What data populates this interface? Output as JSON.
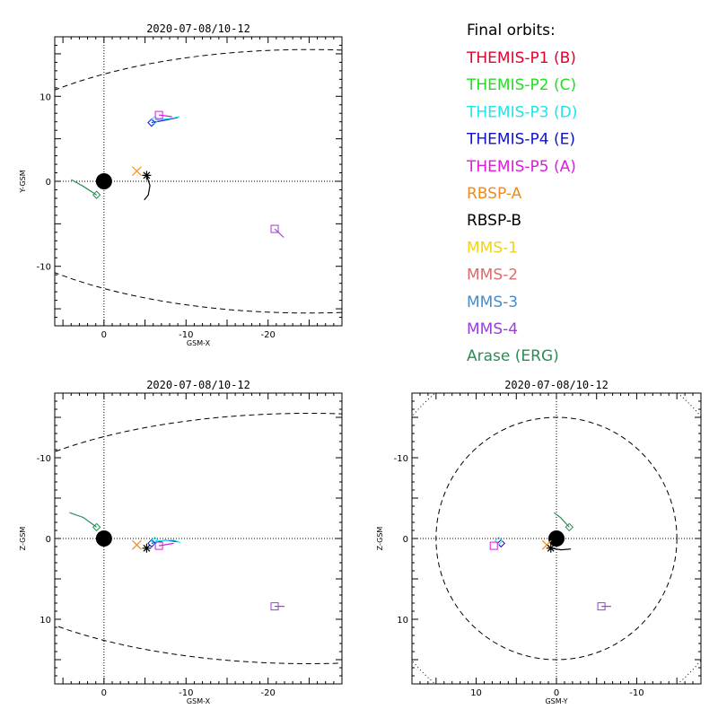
{
  "legend": {
    "title": "Final orbits:",
    "entries": [
      {
        "label": "THEMIS-P1 (B)",
        "color": "#e8002a"
      },
      {
        "label": "THEMIS-P2 (C)",
        "color": "#1fe01f"
      },
      {
        "label": "THEMIS-P3 (D)",
        "color": "#1ee6e6"
      },
      {
        "label": "THEMIS-P4 (E)",
        "color": "#1111cc"
      },
      {
        "label": "THEMIS-P5 (A)",
        "color": "#e01ae0"
      },
      {
        "label": "RBSP-A",
        "color": "#f08a1e"
      },
      {
        "label": "RBSP-B",
        "color": "#000000"
      },
      {
        "label": "MMS-1",
        "color": "#f2d21b"
      },
      {
        "label": "MMS-2",
        "color": "#d96c6c"
      },
      {
        "label": "MMS-3",
        "color": "#4a8cc4"
      },
      {
        "label": "MMS-4",
        "color": "#9a3ddc"
      },
      {
        "label": "Arase (ERG)",
        "color": "#2e8b57"
      }
    ]
  },
  "chart_data": [
    {
      "type": "scatter",
      "id": "xy",
      "title": "2020-07-08/10-12",
      "xlabel": "GSM-X",
      "ylabel": "Y-GSM",
      "xlim": [
        6,
        -29
      ],
      "ylim": [
        17,
        -17
      ],
      "xticks": [
        0,
        -10,
        -20
      ],
      "yticks": [
        -10,
        0,
        10
      ],
      "earth": [
        0,
        0
      ],
      "magnetopause": "upper-lower",
      "spacecraft": [
        {
          "name": "Arase (ERG)",
          "marker": "diamond",
          "pos": [
            0.9,
            -1.6
          ],
          "track": [
            [
              4.0,
              0.2
            ],
            [
              2.5,
              -0.6
            ],
            [
              0.9,
              -1.6
            ]
          ]
        },
        {
          "name": "RBSP-A",
          "marker": "x",
          "pos": [
            -4.0,
            1.2
          ],
          "track": []
        },
        {
          "name": "RBSP-B",
          "marker": "asterisk",
          "pos": [
            -5.2,
            0.7
          ],
          "track": [
            [
              -5.2,
              0.7
            ],
            [
              -5.6,
              -0.5
            ],
            [
              -5.4,
              -1.6
            ],
            [
              -4.9,
              -2.2
            ]
          ]
        },
        {
          "name": "THEMIS-P4 (E)",
          "marker": "diamond",
          "pos": [
            -5.8,
            6.9
          ],
          "track": [
            [
              -5.8,
              6.9
            ],
            [
              -7.5,
              7.2
            ],
            [
              -9.0,
              7.5
            ]
          ]
        },
        {
          "name": "THEMIS-P3 (D)",
          "marker": "diamond",
          "pos": [
            -6.2,
            7.2
          ],
          "track": [
            [
              -6.2,
              7.2
            ],
            [
              -8.2,
              7.4
            ],
            [
              -9.2,
              7.6
            ]
          ]
        },
        {
          "name": "THEMIS-P5 (A)",
          "marker": "square",
          "pos": [
            -6.7,
            7.8
          ],
          "track": [
            [
              -6.7,
              7.8
            ],
            [
              -8.3,
              7.6
            ]
          ]
        },
        {
          "name": "MMS-4",
          "marker": "square",
          "pos": [
            -20.8,
            -5.6
          ],
          "track": [
            [
              -20.8,
              -5.6
            ],
            [
              -21.9,
              -6.6
            ]
          ]
        }
      ]
    },
    {
      "type": "scatter",
      "id": "xz",
      "title": "2020-07-08/10-12",
      "xlabel": "GSM-X",
      "ylabel": "Z-GSM",
      "xlim": [
        6,
        -29
      ],
      "ylim": [
        -18,
        18
      ],
      "xticks": [
        0,
        -10,
        -20
      ],
      "yticks": [
        -10,
        0,
        10
      ],
      "earth": [
        0,
        0
      ],
      "magnetopause": "upper-lower",
      "spacecraft": [
        {
          "name": "Arase (ERG)",
          "marker": "diamond",
          "pos": [
            0.9,
            -1.4
          ],
          "track": [
            [
              4.2,
              -3.2
            ],
            [
              2.5,
              -2.6
            ],
            [
              0.9,
              -1.4
            ]
          ]
        },
        {
          "name": "RBSP-A",
          "marker": "x",
          "pos": [
            -4.0,
            0.8
          ],
          "track": []
        },
        {
          "name": "RBSP-B",
          "marker": "asterisk",
          "pos": [
            -5.2,
            1.2
          ],
          "track": []
        },
        {
          "name": "THEMIS-P4 (E)",
          "marker": "diamond",
          "pos": [
            -5.8,
            0.6
          ],
          "track": [
            [
              -5.8,
              0.6
            ],
            [
              -7.5,
              0.2
            ],
            [
              -9.0,
              0.4
            ]
          ]
        },
        {
          "name": "THEMIS-P3 (D)",
          "marker": "diamond",
          "pos": [
            -6.2,
            0.3
          ],
          "track": [
            [
              -6.2,
              0.3
            ],
            [
              -8.5,
              0.2
            ],
            [
              -9.3,
              0.5
            ]
          ]
        },
        {
          "name": "THEMIS-P5 (A)",
          "marker": "square",
          "pos": [
            -6.7,
            0.9
          ],
          "track": [
            [
              -6.7,
              0.9
            ],
            [
              -8.5,
              0.6
            ]
          ]
        },
        {
          "name": "MMS-4",
          "marker": "square",
          "pos": [
            -20.8,
            8.4
          ],
          "track": [
            [
              -20.8,
              8.4
            ],
            [
              -22.0,
              8.4
            ]
          ]
        }
      ]
    },
    {
      "type": "scatter",
      "id": "yz",
      "title": "2020-07-08/10-12",
      "xlabel": "GSM-Y",
      "ylabel": "Z-GSM",
      "xlim": [
        18,
        -18
      ],
      "ylim": [
        -18,
        18
      ],
      "xticks": [
        10,
        0,
        -10
      ],
      "yticks": [
        -10,
        0,
        10
      ],
      "earth": [
        0,
        0
      ],
      "magnetopause": "circle",
      "circle_radius": 15,
      "spacecraft": [
        {
          "name": "Arase (ERG)",
          "marker": "diamond",
          "pos": [
            -1.6,
            -1.4
          ],
          "track": [
            [
              0.3,
              -3.2
            ],
            [
              -0.5,
              -2.6
            ],
            [
              -1.6,
              -1.4
            ]
          ]
        },
        {
          "name": "RBSP-A",
          "marker": "x",
          "pos": [
            1.2,
            0.8
          ],
          "track": []
        },
        {
          "name": "RBSP-B",
          "marker": "asterisk",
          "pos": [
            0.7,
            1.2
          ],
          "track": [
            [
              0.7,
              1.2
            ],
            [
              -0.6,
              1.4
            ],
            [
              -1.8,
              1.3
            ]
          ]
        },
        {
          "name": "THEMIS-P4 (E)",
          "marker": "diamond",
          "pos": [
            6.9,
            0.6
          ],
          "track": []
        },
        {
          "name": "THEMIS-P3 (D)",
          "marker": "diamond",
          "pos": [
            7.2,
            0.3
          ],
          "track": []
        },
        {
          "name": "THEMIS-P5 (A)",
          "marker": "square",
          "pos": [
            7.8,
            0.9
          ],
          "track": []
        },
        {
          "name": "MMS-4",
          "marker": "square",
          "pos": [
            -5.6,
            8.4
          ],
          "track": [
            [
              -5.6,
              8.4
            ],
            [
              -6.8,
              8.4
            ]
          ]
        }
      ]
    }
  ]
}
